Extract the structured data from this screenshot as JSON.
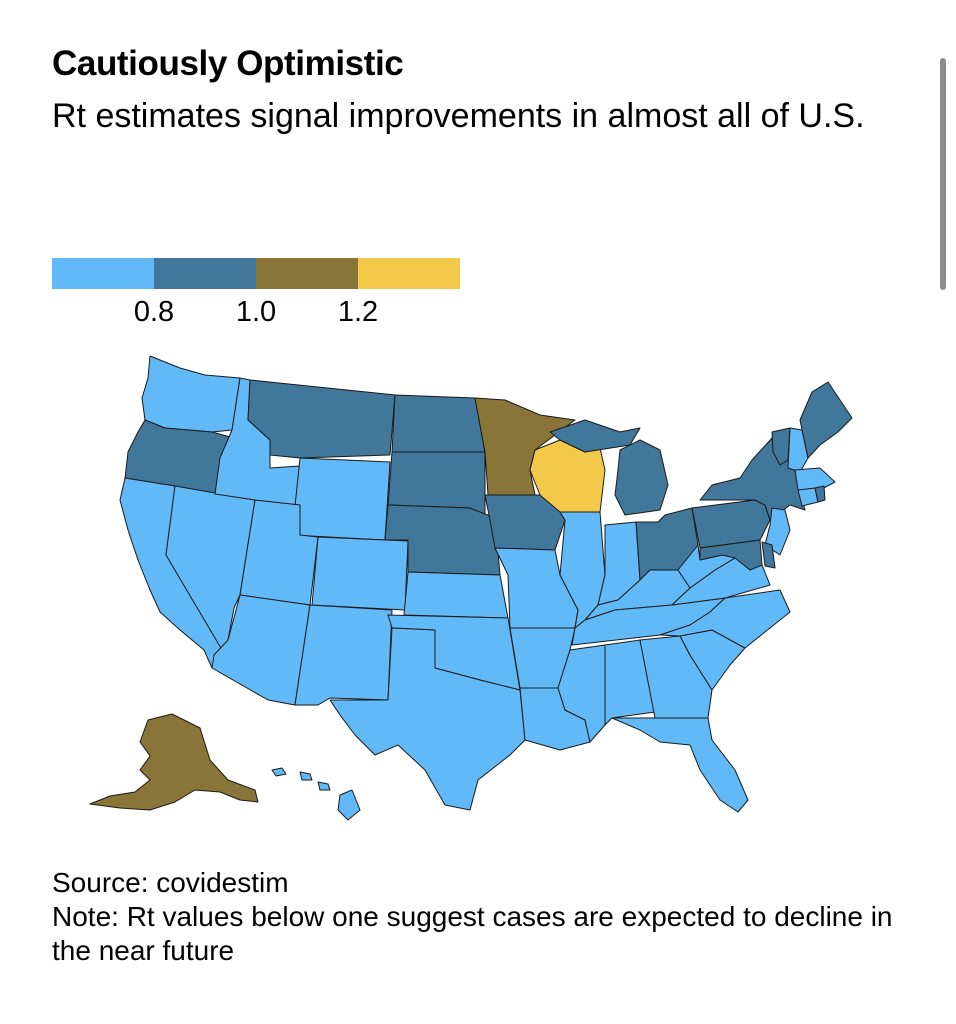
{
  "title": "Cautiously Optimistic",
  "subtitle": "Rt estimates signal improvements in almost all of U.S.",
  "legend": {
    "colors": [
      "#62b9f7",
      "#40779a",
      "#8a7538",
      "#f4c94a"
    ],
    "ticks": [
      "0.8",
      "1.0",
      "1.2"
    ]
  },
  "map_data": {
    "bins": {
      "below_0.8": [
        "WA",
        "ID",
        "WY",
        "NV",
        "UT",
        "CO",
        "CA",
        "AZ",
        "NM",
        "KS",
        "OK",
        "TX",
        "MO",
        "AR",
        "LA",
        "IL",
        "IN",
        "KY",
        "TN",
        "MS",
        "AL",
        "GA",
        "FL",
        "SC",
        "NC",
        "VA",
        "WV",
        "NH",
        "MA",
        "CT",
        "NJ",
        "HI"
      ],
      "0.8_to_1.0": [
        "OR",
        "MT",
        "ND",
        "SD",
        "NE",
        "IA",
        "MI",
        "OH",
        "PA",
        "NY",
        "VT",
        "ME",
        "MD",
        "DE",
        "RI"
      ],
      "1.0_to_1.2": [
        "MN",
        "AK"
      ],
      "above_1.2": [
        "WI"
      ]
    }
  },
  "source": "Source: covidestim",
  "note": "Note: Rt values below one suggest cases are expected to decline in the near future"
}
